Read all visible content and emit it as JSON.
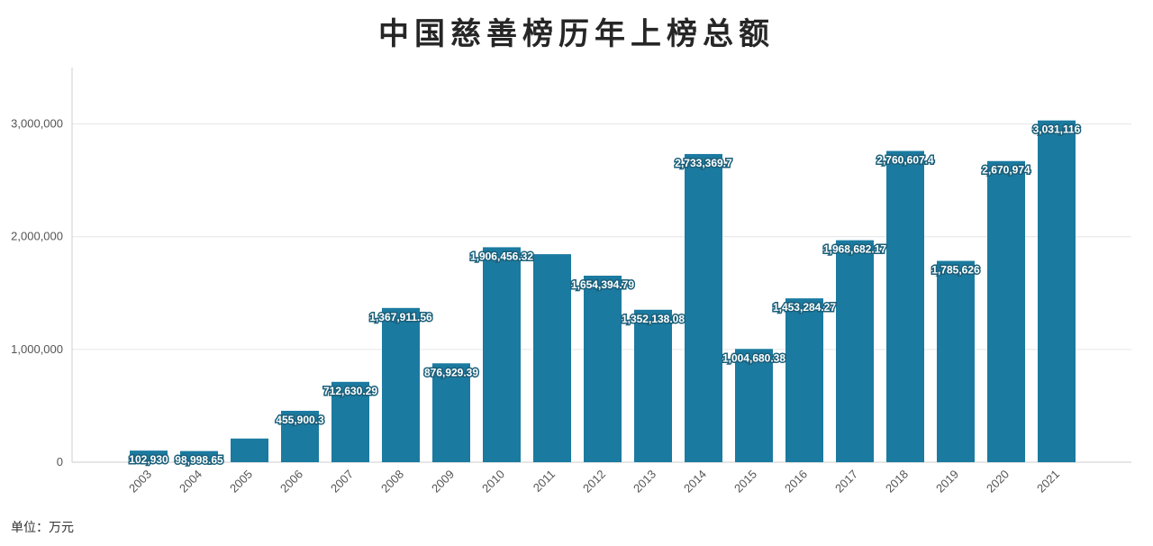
{
  "unit_note": "单位：万元",
  "colors": {
    "bar": "#1b7aa0",
    "grid": "#e6e6e6",
    "axis": "#cccccc",
    "label_outline": "#1a5f7a"
  },
  "chart_data": {
    "type": "bar",
    "title": "中国慈善榜历年上榜总额",
    "xlabel": "",
    "ylabel": "",
    "ylim": [
      0,
      3500000
    ],
    "yticks": [
      0,
      1000000,
      2000000,
      3000000
    ],
    "ytick_labels": [
      "0",
      "1,000,000",
      "2,000,000",
      "3,000,000"
    ],
    "grid": true,
    "legend": "none",
    "categories": [
      "2003",
      "2004",
      "2005",
      "2006",
      "2007",
      "2008",
      "2009",
      "2010",
      "2011",
      "2012",
      "2013",
      "2014",
      "2015",
      "2016",
      "2017",
      "2018",
      "2019",
      "2020",
      "2021"
    ],
    "values": [
      102930,
      98998.65,
      210000,
      455900.3,
      712630.29,
      1367911.56,
      876929.39,
      1906456.32,
      1845000,
      1654394.79,
      1352138.08,
      2733369.7,
      1004680.38,
      1453284.27,
      1968682.17,
      2760607.4,
      1785626,
      2670974,
      3031116
    ],
    "data_labels": [
      "102,930",
      "98,998.65",
      "",
      "455,900.3",
      "712,630.29",
      "1,367,911.56",
      "876,929.39",
      "1,906,456.32",
      "",
      "1,654,394.79",
      "1,352,138.08",
      "2,733,369.7",
      "1,004,680.38",
      "1,453,284.27",
      "1,968,682.17",
      "2,760,607.4",
      "1,785,626",
      "2,670,974",
      "3,031,116"
    ]
  }
}
